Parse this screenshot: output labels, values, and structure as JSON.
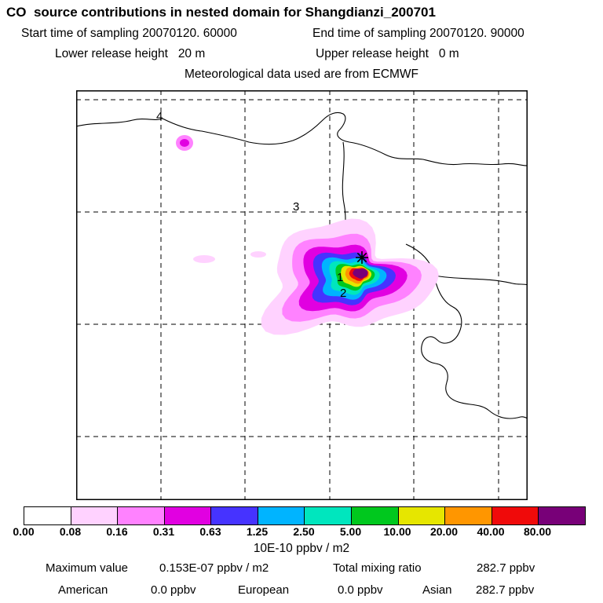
{
  "title": "CO  source contributions in nested domain for Shangdianzi_200701",
  "header": {
    "start_time": "Start time of sampling 20070120. 60000",
    "end_time": "End time of sampling 20070120. 90000",
    "lower_release": "Lower release height   20 m",
    "upper_release": "Upper release height   0 m",
    "met_source": "Meteorological data used are from ECMWF"
  },
  "map": {
    "labels": {
      "l1": "1",
      "l2": "2",
      "l3": "3",
      "l4": "4"
    },
    "receptor_marker": "asterisk"
  },
  "colorbar": {
    "colors": [
      "#ffffff",
      "#ffd2ff",
      "#ff82ff",
      "#e100e1",
      "#4633ff",
      "#00b4ff",
      "#00e6be",
      "#00c81e",
      "#e6e600",
      "#ff9600",
      "#f00a0a",
      "#780078"
    ],
    "tick_labels": [
      "0.00",
      "0.08",
      "0.16",
      "0.31",
      "0.63",
      "1.25",
      "2.50",
      "5.00",
      "10.00",
      "20.00",
      "40.00",
      "80.00"
    ],
    "units": "10E-10 ppbv / m2"
  },
  "footer": {
    "max_label": "Maximum value",
    "max_value": "0.153E-07 ppbv / m2",
    "tmr_label": "Total mixing ratio",
    "tmr_value": "282.7 ppbv",
    "regions": [
      {
        "name": "American",
        "value": "0.0 ppbv"
      },
      {
        "name": "European",
        "value": "0.0 ppbv"
      },
      {
        "name": "Asian",
        "value": "282.7 ppbv"
      }
    ]
  },
  "chart_data": {
    "type": "heatmap",
    "title": "CO source contributions in nested domain for Shangdianzi_200701",
    "units": "10E-10 ppbv / m2",
    "legend_position": "bottom",
    "contour_levels": [
      0.0,
      0.08,
      0.16,
      0.31,
      0.63,
      1.25,
      2.5,
      5.0,
      10.0,
      20.0,
      40.0,
      80.0
    ],
    "level_colors": [
      "#ffffff",
      "#ffd2ff",
      "#ff82ff",
      "#e100e1",
      "#4633ff",
      "#00b4ff",
      "#00e6be",
      "#00c81e",
      "#e6e600",
      "#ff9600",
      "#f00a0a",
      "#780078"
    ],
    "sampling_start": "20070120. 60000",
    "sampling_end": "20070120. 90000",
    "lower_release_height_m": 20,
    "upper_release_height_m": 0,
    "meteorology_source": "ECMWF",
    "maximum_value": "0.153E-07 ppbv / m2",
    "total_mixing_ratio": "282.7 ppbv",
    "source_contributions": [
      {
        "region": "American",
        "value_ppbv": 0.0
      },
      {
        "region": "European",
        "value_ppbv": 0.0
      },
      {
        "region": "Asian",
        "value_ppbv": 282.7
      }
    ],
    "map_point_labels": [
      "1",
      "2",
      "3",
      "4"
    ],
    "plume_max_near_label": "2"
  }
}
